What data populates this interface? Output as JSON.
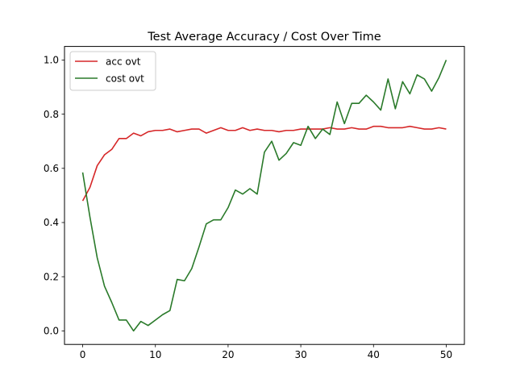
{
  "chart_data": {
    "type": "line",
    "title": "Test Average Accuracy / Cost Over Time",
    "xlabel": "",
    "ylabel": "",
    "xlim": [
      -2.5,
      52.5
    ],
    "ylim": [
      -0.05,
      1.05
    ],
    "xticks": [
      0,
      10,
      20,
      30,
      40,
      50
    ],
    "yticks": [
      0.0,
      0.2,
      0.4,
      0.6,
      0.8,
      1.0
    ],
    "xtick_labels": [
      "0",
      "10",
      "20",
      "30",
      "40",
      "50"
    ],
    "ytick_labels": [
      "0.0",
      "0.2",
      "0.4",
      "0.6",
      "0.8",
      "1.0"
    ],
    "grid": false,
    "legend_position": "top-left",
    "x": [
      0,
      1,
      2,
      3,
      4,
      5,
      6,
      7,
      8,
      9,
      10,
      11,
      12,
      13,
      14,
      15,
      16,
      17,
      18,
      19,
      20,
      21,
      22,
      23,
      24,
      25,
      26,
      27,
      28,
      29,
      30,
      31,
      32,
      33,
      34,
      35,
      36,
      37,
      38,
      39,
      40,
      41,
      42,
      43,
      44,
      45,
      46,
      47,
      48,
      49,
      50
    ],
    "series": [
      {
        "name": "acc ovt",
        "color": "#d62728",
        "values": [
          0.48,
          0.53,
          0.61,
          0.65,
          0.67,
          0.71,
          0.71,
          0.73,
          0.72,
          0.735,
          0.74,
          0.74,
          0.745,
          0.735,
          0.74,
          0.745,
          0.745,
          0.73,
          0.74,
          0.75,
          0.74,
          0.74,
          0.75,
          0.74,
          0.745,
          0.74,
          0.74,
          0.735,
          0.74,
          0.74,
          0.745,
          0.745,
          0.745,
          0.745,
          0.75,
          0.745,
          0.745,
          0.75,
          0.745,
          0.745,
          0.755,
          0.755,
          0.75,
          0.75,
          0.75,
          0.755,
          0.75,
          0.745,
          0.745,
          0.75,
          0.745
        ]
      },
      {
        "name": "cost ovt",
        "color": "#2a7a2a",
        "values": [
          0.585,
          0.42,
          0.27,
          0.165,
          0.105,
          0.04,
          0.04,
          0.0,
          0.035,
          0.02,
          0.04,
          0.06,
          0.075,
          0.19,
          0.185,
          0.23,
          0.31,
          0.395,
          0.41,
          0.41,
          0.455,
          0.52,
          0.505,
          0.525,
          0.505,
          0.66,
          0.7,
          0.63,
          0.655,
          0.695,
          0.685,
          0.755,
          0.71,
          0.745,
          0.725,
          0.845,
          0.765,
          0.84,
          0.84,
          0.87,
          0.845,
          0.815,
          0.93,
          0.82,
          0.92,
          0.875,
          0.945,
          0.93,
          0.885,
          0.935,
          1.0
        ]
      }
    ]
  }
}
